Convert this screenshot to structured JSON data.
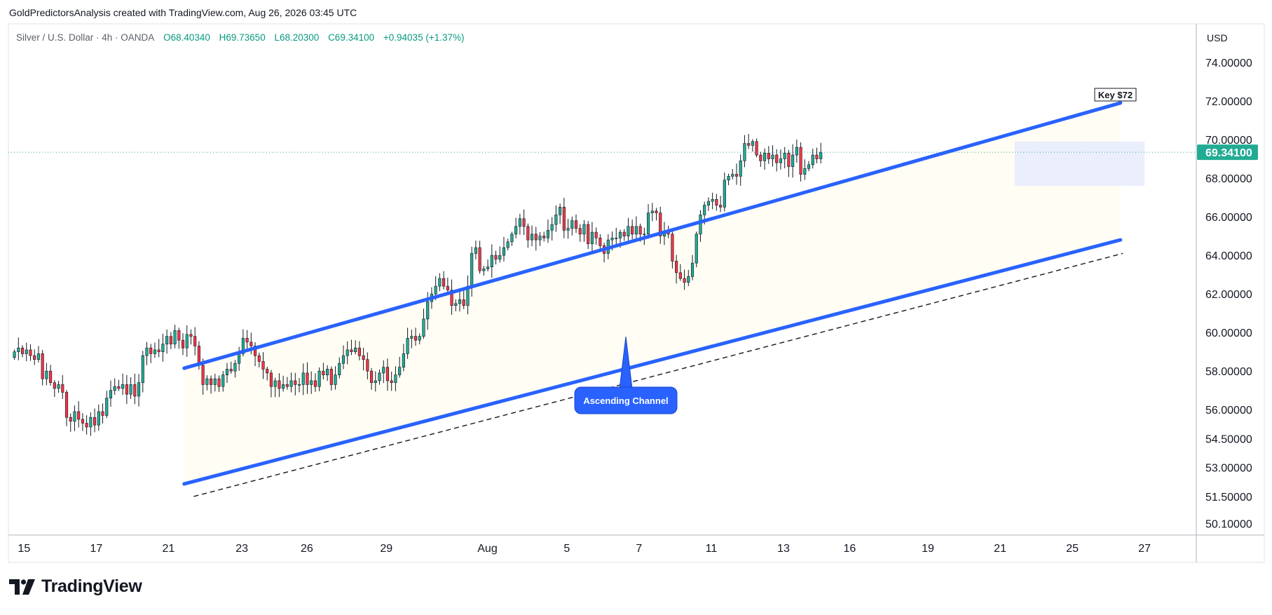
{
  "header": {
    "attribution": "GoldPredictorsAnalysis created with TradingView.com, Aug 26, 2026 03:45 UTC"
  },
  "legend": {
    "symbol": "Silver / U.S. Dollar · 4h · OANDA",
    "open": "O68.40340",
    "high": "H69.73650",
    "low": "L68.20300",
    "close": "C69.34100",
    "change": "+0.94035 (+1.37%)"
  },
  "price_axis": {
    "currency": "USD",
    "last_price_label": "69.34100"
  },
  "annotations": {
    "key_level": "Key $72",
    "channel_label": "Ascending Channel"
  },
  "brand": {
    "name": "TradingView"
  },
  "colors": {
    "up": "#22ab94",
    "down": "#f23645",
    "channel": "#2962ff",
    "last_price": "#22ab94",
    "range_box": "#e8ecfb",
    "channel_fill": "#fffdf4"
  },
  "chart_data": {
    "type": "candlestick",
    "title": "Silver / U.S. Dollar · 4h · OANDA",
    "xlabel": "",
    "ylabel": "",
    "ylim": [
      49.5,
      76.0
    ],
    "grid": false,
    "y_ticks": [
      74.0,
      72.0,
      70.0,
      68.0,
      66.0,
      64.0,
      62.0,
      60.0,
      58.0,
      56.0,
      54.5,
      53.0,
      51.5,
      50.1
    ],
    "x_ticks": [
      {
        "label": "15",
        "x": 0.65
      },
      {
        "label": "17",
        "x": 3.65
      },
      {
        "label": "21",
        "x": 6.65
      },
      {
        "label": "23",
        "x": 9.7
      },
      {
        "label": "26",
        "x": 12.4
      },
      {
        "label": "29",
        "x": 15.7
      },
      {
        "label": "Aug",
        "x": 19.9
      },
      {
        "label": "5",
        "x": 23.2
      },
      {
        "label": "7",
        "x": 26.2
      },
      {
        "label": "11",
        "x": 29.2
      },
      {
        "label": "13",
        "x": 32.2
      },
      {
        "label": "16",
        "x": 34.95
      },
      {
        "label": "19",
        "x": 38.2
      },
      {
        "label": "21",
        "x": 41.2
      },
      {
        "label": "25",
        "x": 44.2
      },
      {
        "label": "27",
        "x": 47.2
      }
    ],
    "last_price": 69.341,
    "candles_per_day": 6,
    "closes": [
      59.0,
      59.2,
      58.9,
      59.1,
      58.8,
      58.6,
      58.9,
      57.6,
      58.0,
      57.4,
      57.1,
      57.3,
      56.9,
      55.6,
      55.4,
      55.9,
      55.5,
      55.3,
      55.1,
      55.6,
      55.2,
      55.9,
      55.7,
      56.6,
      57.0,
      57.2,
      57.1,
      57.3,
      56.8,
      57.3,
      56.7,
      57.4,
      58.8,
      59.2,
      58.9,
      59.1,
      59.0,
      59.4,
      59.8,
      59.4,
      60.1,
      59.6,
      59.2,
      59.9,
      59.8,
      59.3,
      58.3,
      57.3,
      57.6,
      57.3,
      57.6,
      57.2,
      57.8,
      58.1,
      58.0,
      58.4,
      58.9,
      59.7,
      59.5,
      59.3,
      58.8,
      58.5,
      58.1,
      57.9,
      57.2,
      57.5,
      57.1,
      57.3,
      57.2,
      57.5,
      57.3,
      57.3,
      57.9,
      57.3,
      57.5,
      57.2,
      58.0,
      57.8,
      58.1,
      57.3,
      57.8,
      58.4,
      58.8,
      59.1,
      59.0,
      59.2,
      58.8,
      58.6,
      58.0,
      57.4,
      57.5,
      57.9,
      58.2,
      57.5,
      57.4,
      57.8,
      58.2,
      58.9,
      59.7,
      59.8,
      59.6,
      59.8,
      60.7,
      61.6,
      62.0,
      62.4,
      62.8,
      62.4,
      62.2,
      61.4,
      61.5,
      61.7,
      61.4,
      62.4,
      64.1,
      64.4,
      63.2,
      63.3,
      63.4,
      64.0,
      63.8,
      64.0,
      64.4,
      64.7,
      65.1,
      65.5,
      65.9,
      65.5,
      64.8,
      65.1,
      64.8,
      65.0,
      64.9,
      65.3,
      65.6,
      66.1,
      66.5,
      65.3,
      65.4,
      65.8,
      65.4,
      65.1,
      65.6,
      64.6,
      65.2,
      64.9,
      64.5,
      64.1,
      64.8,
      64.9,
      64.9,
      65.2,
      65.0,
      65.5,
      65.1,
      65.5,
      65.1,
      65.1,
      66.2,
      66.3,
      66.2,
      65.0,
      65.2,
      65.1,
      63.7,
      63.1,
      62.8,
      62.6,
      62.9,
      63.6,
      65.1,
      66.1,
      66.6,
      66.8,
      66.9,
      66.6,
      66.5,
      67.9,
      68.1,
      68.2,
      68.1,
      68.9,
      69.8,
      69.7,
      69.9,
      69.2,
      68.9,
      69.3,
      69.0,
      69.2,
      68.8,
      69.0,
      69.3,
      68.6,
      69.2,
      69.6,
      68.2,
      68.5,
      68.7,
      69.2,
      69.0,
      69.34
    ],
    "channel_upper": [
      {
        "x": 7.3,
        "y": 58.15
      },
      {
        "x": 46.2,
        "y": 71.9
      }
    ],
    "channel_lower": [
      {
        "x": 7.3,
        "y": 52.15
      },
      {
        "x": 46.2,
        "y": 64.8
      }
    ],
    "support_dashed": [
      {
        "x": 7.7,
        "y": 51.5
      },
      {
        "x": 46.3,
        "y": 64.1
      }
    ],
    "consolidation_box": {
      "x0": 41.8,
      "x1": 47.2,
      "y0": 67.6,
      "y1": 69.9
    }
  }
}
